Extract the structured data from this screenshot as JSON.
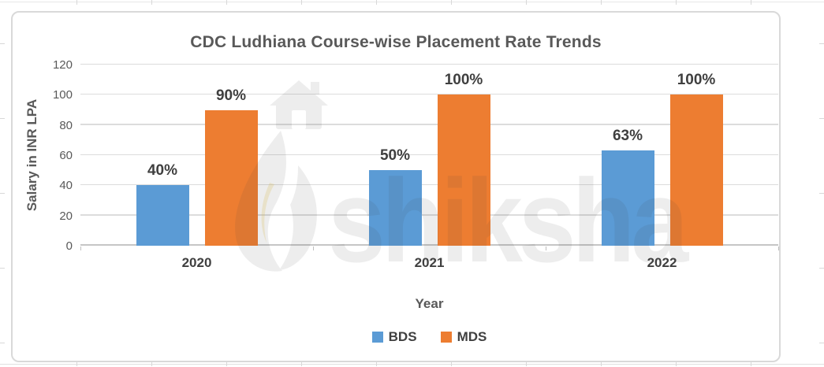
{
  "chart_data": {
    "type": "bar",
    "title": "CDC Ludhiana Course-wise Placement Rate Trends",
    "categories": [
      "2020",
      "2021",
      "2022"
    ],
    "series": [
      {
        "name": "BDS",
        "color": "#5B9BD5",
        "values": [
          40,
          50,
          63
        ],
        "data_labels": [
          "40%",
          "50%",
          "63%"
        ]
      },
      {
        "name": "MDS",
        "color": "#ED7D31",
        "values": [
          90,
          100,
          100
        ],
        "data_labels": [
          "90%",
          "100%",
          "100%"
        ]
      }
    ],
    "xlabel": "Year",
    "ylabel": "Salary in INR LPA",
    "ylim": [
      0,
      120
    ],
    "yticks": [
      0,
      20,
      40,
      60,
      80,
      100,
      120
    ],
    "grid": true,
    "legend_position": "bottom"
  },
  "watermark": {
    "text": "shiksha"
  },
  "colors": {
    "bar_bds": "#5B9BD5",
    "bar_mds": "#ED7D31",
    "gridline": "#DCDCDC",
    "chart_border": "#D9D9D9",
    "title_text": "#595959",
    "data_label_text": "#3F3F3F",
    "axis_text": "#595959",
    "watermark_gray": "#404040"
  }
}
